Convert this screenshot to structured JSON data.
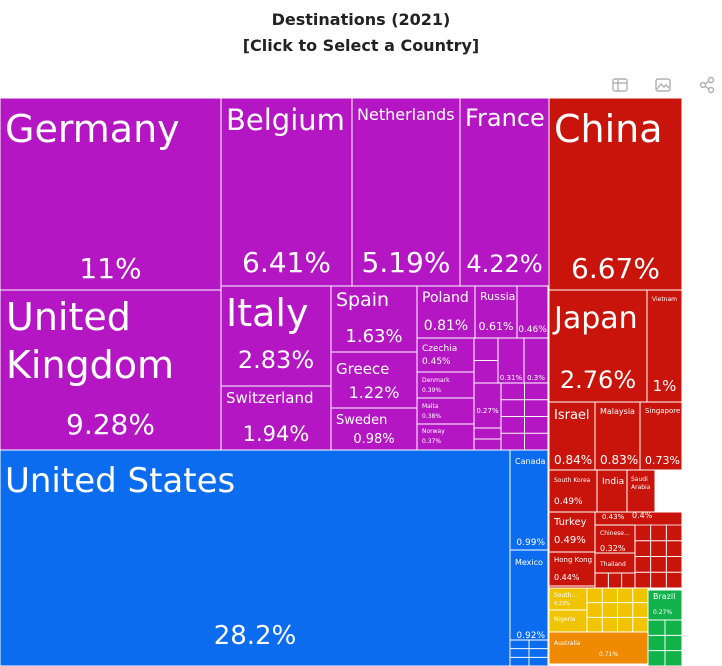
{
  "header": {
    "title_line1": "Destinations (2021)",
    "title_line2": "[Click to Select a Country]"
  },
  "toolbar": {
    "icons": [
      "data-table-icon",
      "image-icon",
      "share-icon"
    ]
  },
  "colors": {
    "europe": "#b416c4",
    "asia": "#c9140b",
    "north_america": "#0b6cf0",
    "south_america": "#12b24a",
    "africa": "#f0c400",
    "oceania": "#f08a00"
  },
  "chart_data": {
    "type": "treemap",
    "title": "Destinations (2021) [Click to Select a Country]",
    "nodes": [
      {
        "name": "Germany",
        "value": "11%",
        "region": "europe"
      },
      {
        "name": "Belgium",
        "value": "6.41%",
        "region": "europe"
      },
      {
        "name": "Netherlands",
        "value": "5.19%",
        "region": "europe"
      },
      {
        "name": "France",
        "value": "4.22%",
        "region": "europe"
      },
      {
        "name": "United Kingdom",
        "value": "9.28%",
        "region": "europe"
      },
      {
        "name": "Italy",
        "value": "2.83%",
        "region": "europe"
      },
      {
        "name": "Switzerland",
        "value": "1.94%",
        "region": "europe"
      },
      {
        "name": "Spain",
        "value": "1.63%",
        "region": "europe"
      },
      {
        "name": "Greece",
        "value": "1.22%",
        "region": "europe"
      },
      {
        "name": "Sweden",
        "value": "0.98%",
        "region": "europe"
      },
      {
        "name": "Poland",
        "value": "0.81%",
        "region": "europe"
      },
      {
        "name": "Russia",
        "value": "0.61%",
        "region": "europe"
      },
      {
        "name": "",
        "value": "0.46%",
        "region": "europe"
      },
      {
        "name": "Czechia",
        "value": "0.45%",
        "region": "europe"
      },
      {
        "name": "Denmark",
        "value": "0.39%",
        "region": "europe"
      },
      {
        "name": "Malta",
        "value": "0.38%",
        "region": "europe"
      },
      {
        "name": "Norway",
        "value": "0.37%",
        "region": "europe"
      },
      {
        "name": "",
        "value": "0.31%",
        "region": "europe"
      },
      {
        "name": "",
        "value": "0.3%",
        "region": "europe"
      },
      {
        "name": "",
        "value": "0.27%",
        "region": "europe"
      },
      {
        "name": "China",
        "value": "6.67%",
        "region": "asia"
      },
      {
        "name": "Japan",
        "value": "2.76%",
        "region": "asia"
      },
      {
        "name": "Vietnam",
        "value": "1%",
        "region": "asia"
      },
      {
        "name": "Israel",
        "value": "0.84%",
        "region": "asia"
      },
      {
        "name": "Malaysia",
        "value": "0.83%",
        "region": "asia"
      },
      {
        "name": "Singapore",
        "value": "0.73%",
        "region": "asia"
      },
      {
        "name": "South Korea",
        "value": "0.49%",
        "region": "asia"
      },
      {
        "name": "India",
        "value": "0.43%",
        "region": "asia"
      },
      {
        "name": "Saudi Arabia",
        "value": "0.4%",
        "region": "asia"
      },
      {
        "name": "Turkey",
        "value": "0.49%",
        "region": "asia"
      },
      {
        "name": "Chinese...",
        "value": "0.32%",
        "region": "asia"
      },
      {
        "name": "Hong Kong",
        "value": "0.44%",
        "region": "asia"
      },
      {
        "name": "Thailand",
        "value": "",
        "region": "asia"
      },
      {
        "name": "United States",
        "value": "28.2%",
        "region": "north_america"
      },
      {
        "name": "Canada",
        "value": "0.99%",
        "region": "north_america"
      },
      {
        "name": "Mexico",
        "value": "0.92%",
        "region": "north_america"
      },
      {
        "name": "South...",
        "value": "0.23%",
        "region": "africa"
      },
      {
        "name": "Nigeria",
        "value": "",
        "region": "africa"
      },
      {
        "name": "Australia",
        "value": "0.71%",
        "region": "oceania"
      },
      {
        "name": "Brazil",
        "value": "0.27%",
        "region": "south_america"
      }
    ]
  }
}
